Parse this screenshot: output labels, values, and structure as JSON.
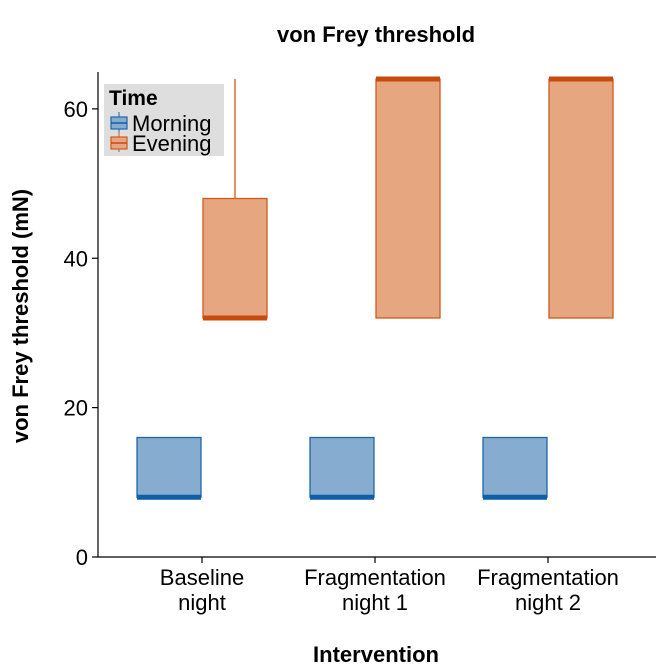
{
  "chart_data": {
    "type": "box",
    "title": "von Frey threshold",
    "xlabel": "Intervention",
    "ylabel": "von Frey threshold (mN)",
    "categories": [
      [
        "Baseline",
        "night"
      ],
      [
        "Fragmentation",
        "night 1"
      ],
      [
        "Fragmentation",
        "night 2"
      ]
    ],
    "ylim": [
      0,
      65
    ],
    "yticks": [
      0,
      20,
      40,
      60
    ],
    "grid": false,
    "legend": {
      "title": "Time",
      "position": "top-left"
    },
    "series": [
      {
        "name": "Morning",
        "fill": "#86acd0",
        "stroke": "#1f66a8",
        "median_color": "#0e5ea8",
        "boxes": [
          {
            "min": 8,
            "q1": 8,
            "median": 8,
            "q3": 16,
            "max": 16
          },
          {
            "min": 8,
            "q1": 8,
            "median": 8,
            "q3": 16,
            "max": 16
          },
          {
            "min": 8,
            "q1": 8,
            "median": 8,
            "q3": 16,
            "max": 16
          }
        ]
      },
      {
        "name": "Evening",
        "fill": "#e5a680",
        "stroke": "#cf5a1c",
        "median_color": "#c94a0c",
        "boxes": [
          {
            "min": 32,
            "q1": 32,
            "median": 32,
            "q3": 48,
            "max": 64
          },
          {
            "min": 32,
            "q1": 32,
            "median": 64,
            "q3": 64,
            "max": 64
          },
          {
            "min": 32,
            "q1": 32,
            "median": 64,
            "q3": 64,
            "max": 64
          }
        ]
      }
    ]
  }
}
